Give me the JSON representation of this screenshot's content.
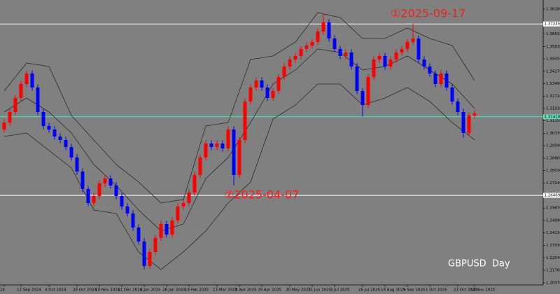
{
  "chart_data": {
    "type": "candlestick",
    "background": "#808080",
    "up_color": "#ff0000",
    "down_color": "#0000ff",
    "band_color": "#2b2b2b",
    "ylim": [
      1.2084,
      1.3875
    ],
    "yticks": [
      {
        "value": 1.3818,
        "label": "1.38180"
      },
      {
        "value": 1.3661,
        "label": "1.36610"
      },
      {
        "value": 1.3583,
        "label": "1.35830"
      },
      {
        "value": 1.3505,
        "label": "1.35050"
      },
      {
        "value": 1.3427,
        "label": "1.34270"
      },
      {
        "value": 1.3349,
        "label": "1.33490"
      },
      {
        "value": 1.3271,
        "label": "1.32710"
      },
      {
        "value": 1.3193,
        "label": "1.31930"
      },
      {
        "value": 1.3115,
        "label": "1.31150"
      },
      {
        "value": 1.3037,
        "label": "1.30370"
      },
      {
        "value": 1.2959,
        "label": "1.29590"
      },
      {
        "value": 1.288,
        "label": "1.28800"
      },
      {
        "value": 1.2803,
        "label": "1.28030"
      },
      {
        "value": 1.2724,
        "label": "1.27240"
      },
      {
        "value": 1.2646,
        "label": "1.26460"
      },
      {
        "value": 1.2567,
        "label": "1.25670"
      },
      {
        "value": 1.2489,
        "label": "1.24890"
      },
      {
        "value": 1.2411,
        "label": "1.24110"
      },
      {
        "value": 1.2333,
        "label": "1.23330"
      },
      {
        "value": 1.2254,
        "label": "1.22540"
      },
      {
        "value": 1.2176,
        "label": "1.21760"
      },
      {
        "value": 1.2097,
        "label": "1.20970"
      }
    ],
    "categories": [
      "24",
      null,
      null,
      "12 Sep 2024",
      null,
      null,
      null,
      null,
      "4 Oct 2024",
      null,
      null,
      null,
      null,
      "28 Oct 2024",
      null,
      null,
      null,
      "19 Nov 2024",
      null,
      null,
      null,
      "11 Dec 2024",
      null,
      null,
      null,
      "6 Jan 2025",
      null,
      null,
      null,
      "28 Jan 2025",
      null,
      null,
      null,
      "19 Feb 2025",
      null,
      null,
      null,
      null,
      "13 Mar 2025",
      null,
      null,
      null,
      "4 Apr 2025",
      null,
      null,
      null,
      "29 Apr 2025",
      null,
      null,
      null,
      null,
      "20 May 2025",
      null,
      null,
      null,
      "11 Jun 2025",
      null,
      null,
      null,
      "3 Jul 2025",
      null,
      null,
      null,
      null,
      "25 Jul 2025",
      null,
      null,
      null,
      "18 Aug 2025",
      null,
      null,
      null,
      "9 Sep 2025",
      null,
      null,
      null,
      "1 Oct 2025",
      null,
      null,
      null,
      null,
      "23 Oct 2025",
      null,
      null,
      "14 Nov 2025"
    ],
    "open": [
      1.306,
      1.3105,
      1.3171,
      1.3259,
      1.3347,
      1.3413,
      1.3325,
      1.3171,
      1.3083,
      1.3061,
      1.3017,
      1.2995,
      1.2951,
      1.2885,
      1.2797,
      1.2687,
      1.2599,
      1.2643,
      1.2723,
      1.2753,
      1.2709,
      1.2643,
      1.2577,
      1.2533,
      1.2445,
      1.2357,
      1.2203,
      1.2291,
      1.2379,
      1.2467,
      1.2401,
      1.2489,
      1.2577,
      1.2599,
      1.2665,
      1.2775,
      1.2885,
      1.2973,
      1.2951,
      1.2973,
      1.2942,
      1.3061,
      1.2775,
      1.2995,
      1.3237,
      1.3325,
      1.3369,
      1.3325,
      1.3259,
      1.3303,
      1.3391,
      1.3457,
      1.3501,
      1.3523,
      1.3567,
      1.3589,
      1.3611,
      1.3677,
      1.3734,
      1.3633,
      1.3567,
      1.3523,
      1.3545,
      1.3457,
      1.3303,
      1.3215,
      1.3391,
      1.3501,
      1.3523,
      1.3457,
      1.3501,
      1.3545,
      1.3567,
      1.3611,
      1.3633,
      1.3501,
      1.3457,
      1.3413,
      1.3347,
      1.3413,
      1.3325,
      1.3237,
      1.3171,
      1.3039,
      1.3149
    ],
    "high": [
      1.3125,
      1.3191,
      1.3279,
      1.3367,
      1.3433,
      1.3433,
      1.3345,
      1.3191,
      1.3103,
      1.3081,
      1.3037,
      1.3015,
      1.2971,
      1.2905,
      1.2817,
      1.2707,
      1.2663,
      1.2743,
      1.2773,
      1.2773,
      1.2729,
      1.2663,
      1.2597,
      1.2553,
      1.2465,
      1.2377,
      1.2311,
      1.2399,
      1.2487,
      1.2487,
      1.2509,
      1.2597,
      1.2619,
      1.2685,
      1.2795,
      1.2905,
      1.2993,
      1.2993,
      1.2993,
      1.2993,
      1.3081,
      1.3081,
      1.3015,
      1.3257,
      1.3345,
      1.3389,
      1.3389,
      1.3345,
      1.3323,
      1.3411,
      1.3477,
      1.3521,
      1.3543,
      1.3587,
      1.3609,
      1.3631,
      1.3697,
      1.3788,
      1.3754,
      1.3653,
      1.3587,
      1.3565,
      1.3565,
      1.3477,
      1.3323,
      1.3411,
      1.3521,
      1.3543,
      1.3543,
      1.3521,
      1.3565,
      1.3587,
      1.3631,
      1.3726,
      1.3653,
      1.3521,
      1.3477,
      1.3433,
      1.3433,
      1.3433,
      1.3345,
      1.3257,
      1.3191,
      1.3169,
      1.3182
    ],
    "low": [
      1.304,
      1.3085,
      1.3151,
      1.3239,
      1.3327,
      1.3305,
      1.3151,
      1.3063,
      1.3041,
      1.2997,
      1.2975,
      1.2931,
      1.2865,
      1.2777,
      1.2667,
      1.2579,
      1.2579,
      1.2623,
      1.2703,
      1.2689,
      1.2623,
      1.2557,
      1.2513,
      1.2425,
      1.2337,
      1.2183,
      1.2183,
      1.2271,
      1.2359,
      1.2381,
      1.2381,
      1.2469,
      1.2557,
      1.2579,
      1.2645,
      1.2755,
      1.2865,
      1.2931,
      1.2931,
      1.2922,
      1.2922,
      1.271,
      1.2755,
      1.2975,
      1.3217,
      1.3305,
      1.3305,
      1.3239,
      1.3239,
      1.3283,
      1.3371,
      1.3437,
      1.3481,
      1.3503,
      1.3547,
      1.3569,
      1.3591,
      1.3657,
      1.3613,
      1.3547,
      1.3503,
      1.3503,
      1.3437,
      1.3283,
      1.3142,
      1.3195,
      1.3371,
      1.3481,
      1.3437,
      1.3437,
      1.3481,
      1.3525,
      1.3547,
      1.3591,
      1.3481,
      1.3437,
      1.3393,
      1.3327,
      1.3327,
      1.3305,
      1.3217,
      1.3151,
      1.301,
      1.3019,
      1.3129
    ],
    "close": [
      1.3105,
      1.3171,
      1.3259,
      1.3347,
      1.3413,
      1.3325,
      1.3171,
      1.3083,
      1.3061,
      1.3017,
      1.2995,
      1.2951,
      1.2885,
      1.2797,
      1.2687,
      1.2599,
      1.2643,
      1.2723,
      1.2753,
      1.2709,
      1.2643,
      1.2577,
      1.2533,
      1.2445,
      1.2357,
      1.2203,
      1.2291,
      1.2379,
      1.2467,
      1.2401,
      1.2489,
      1.2577,
      1.2599,
      1.2665,
      1.2775,
      1.2885,
      1.2973,
      1.2951,
      1.2973,
      1.2942,
      1.3061,
      1.2775,
      1.2995,
      1.3237,
      1.3325,
      1.3369,
      1.3325,
      1.3259,
      1.3303,
      1.3391,
      1.3457,
      1.3501,
      1.3523,
      1.3567,
      1.3589,
      1.3611,
      1.3677,
      1.3734,
      1.3633,
      1.3567,
      1.3523,
      1.3545,
      1.3457,
      1.3303,
      1.3215,
      1.3391,
      1.3501,
      1.3523,
      1.3457,
      1.3501,
      1.3545,
      1.3567,
      1.3611,
      1.3633,
      1.3501,
      1.3457,
      1.3413,
      1.3347,
      1.3413,
      1.3325,
      1.3237,
      1.3171,
      1.3039,
      1.3149,
      1.3162
    ],
    "bands": {
      "x": [
        0,
        4,
        8,
        12,
        16,
        20,
        24,
        28,
        32,
        36,
        40,
        44,
        48,
        52,
        56,
        60,
        64,
        68,
        72,
        76,
        80,
        84
      ],
      "upper": [
        1.3303,
        1.3479,
        1.3457,
        1.3149,
        1.2995,
        1.2841,
        1.2731,
        1.2599,
        1.2621,
        1.3083,
        1.3105,
        1.3501,
        1.3523,
        1.3611,
        1.3796,
        1.3765,
        1.3633,
        1.3633,
        1.3699,
        1.3633,
        1.3589,
        1.3369
      ],
      "middle": [
        1.3171,
        1.3259,
        1.3171,
        1.3039,
        1.2841,
        1.2709,
        1.2555,
        1.2423,
        1.2467,
        1.2753,
        1.2885,
        1.3105,
        1.3347,
        1.3435,
        1.3567,
        1.3545,
        1.3435,
        1.3457,
        1.3523,
        1.3435,
        1.3347,
        1.3193
      ],
      "lower": [
        1.3017,
        1.3039,
        1.2929,
        1.2819,
        1.2555,
        1.2533,
        1.2291,
        1.2181,
        1.2291,
        1.2423,
        1.2599,
        1.2731,
        1.3127,
        1.3215,
        1.3347,
        1.3347,
        1.3215,
        1.3259,
        1.3325,
        1.3237,
        1.3105,
        1.2995
      ]
    },
    "hlines": [
      {
        "price": 1.37245,
        "color": "#ffffff"
      },
      {
        "price": 1.3141,
        "label": "1.31410",
        "color": "#66d9b8"
      },
      {
        "price": 1.26469,
        "color": "#ffffff"
      }
    ],
    "annotations": [
      "①2025-09-17",
      "②2025-04-07"
    ],
    "symbol_label": "GBPUSD  Day"
  }
}
